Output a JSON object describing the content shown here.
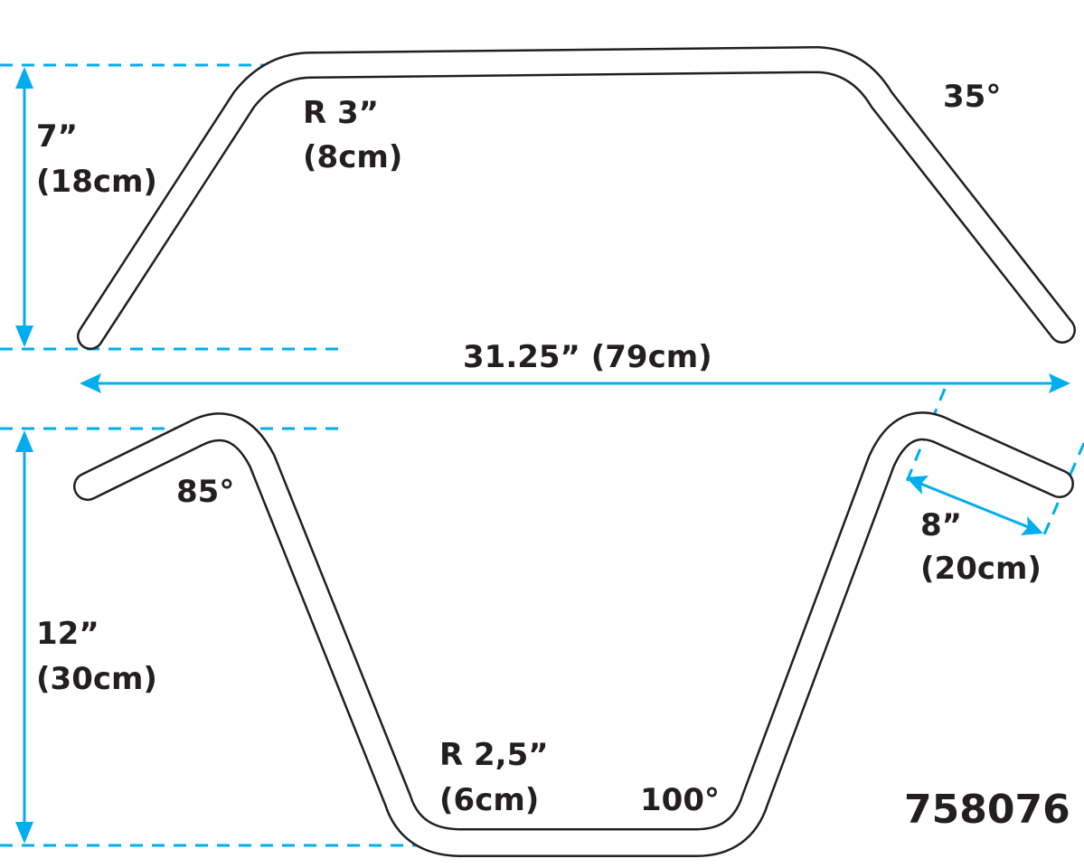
{
  "colors": {
    "dimension": "#00aeef",
    "outline": "#231f20",
    "background": "#ffffff"
  },
  "labels": {
    "top_height": "7”",
    "top_height_metric": "(18cm)",
    "top_radius": "R 3”",
    "top_radius_metric": "(8cm)",
    "top_angle": "35°",
    "width": "31.25” (79cm)",
    "bottom_left_angle": "85°",
    "grip_length": "8”",
    "grip_length_metric": "(20cm)",
    "bottom_height": "12”",
    "bottom_height_metric": "(30cm)",
    "bottom_radius": "R 2,5”",
    "bottom_radius_metric": "(6cm)",
    "bottom_angle": "100°",
    "part_number": "758076"
  }
}
